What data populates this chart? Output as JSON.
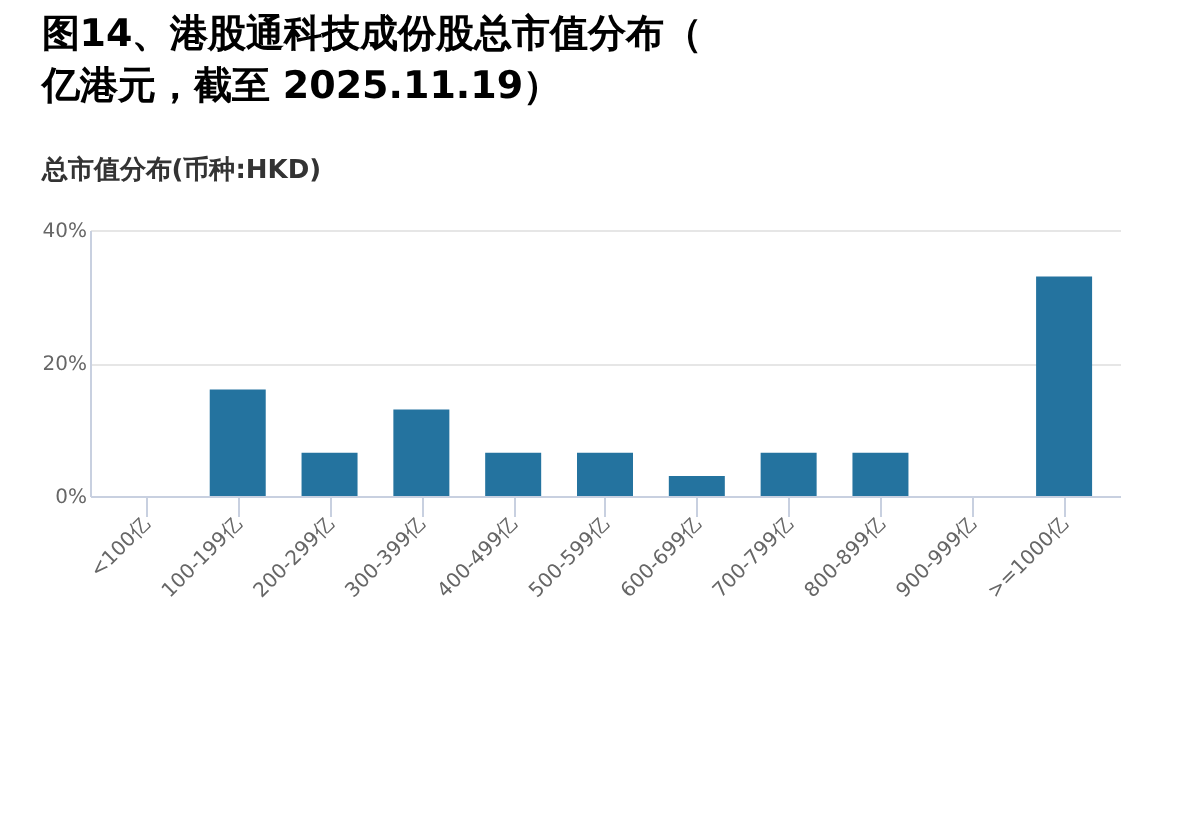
{
  "chart_data": {
    "type": "bar",
    "title": "图14、港股通科技成份股总市值分布（亿港元，截至 2025.11.19）",
    "subtitle": "总市值分布(币种:HKD)",
    "categories": [
      "<100亿",
      "100-199亿",
      "200-299亿",
      "300-399亿",
      "400-499亿",
      "500-599亿",
      "600-699亿",
      "700-799亿",
      "800-899亿",
      "900-999亿",
      ">=1000亿"
    ],
    "values": [
      0,
      16,
      6.5,
      13,
      6.5,
      6.5,
      3,
      6.5,
      6.5,
      0,
      33
    ],
    "color": "#24739f",
    "ylim": [
      0,
      40
    ],
    "yticks": [
      {
        "value": 0,
        "label": "0%"
      },
      {
        "value": 20,
        "label": "20%"
      },
      {
        "value": 40,
        "label": "40%"
      }
    ],
    "grid": "y"
  }
}
